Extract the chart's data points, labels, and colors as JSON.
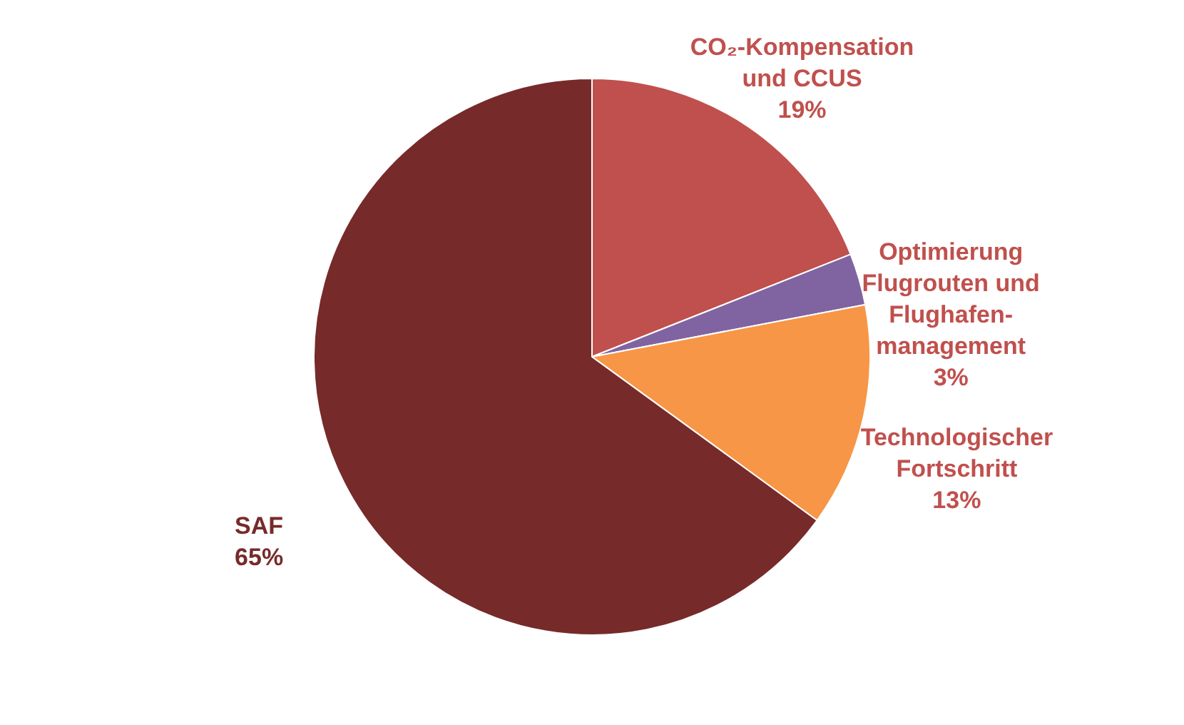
{
  "chart_data": {
    "type": "pie",
    "categories": [
      "CO₂-Kompensation\nund CCUS",
      "Optimierung\nFlugrouten und\nFlughafen-\nmanagement",
      "Technologischer\nFortschritt",
      "SAF"
    ],
    "values": [
      19,
      3,
      13,
      65
    ],
    "colors": [
      "#c0504d",
      "#8064a2",
      "#f79646",
      "#772a2a"
    ],
    "value_labels": [
      "19%",
      "3%",
      "13%",
      "65%"
    ]
  }
}
